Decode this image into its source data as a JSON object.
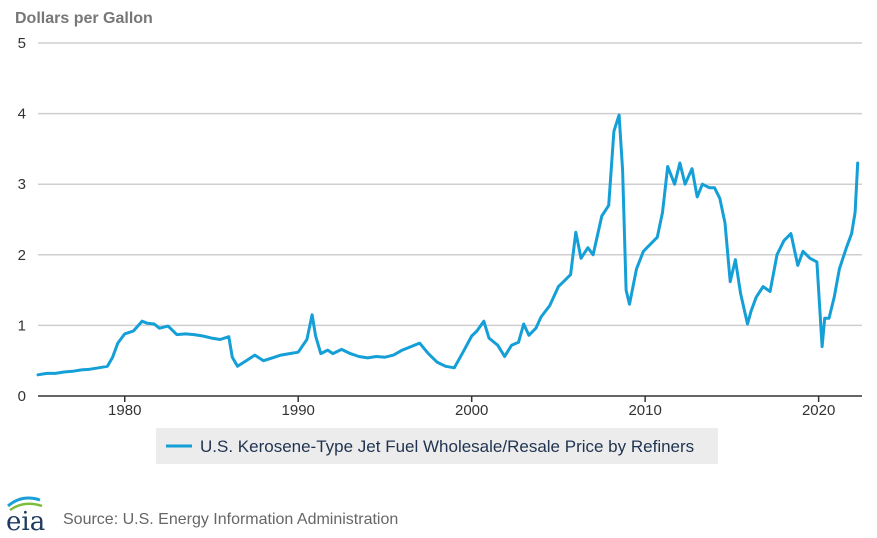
{
  "chart_data": {
    "type": "line",
    "title": "",
    "ylabel": "Dollars per Gallon",
    "xlabel": "",
    "ylim": [
      0,
      5
    ],
    "xlim": [
      1975,
      2022.5
    ],
    "y_ticks": [
      "0",
      "1",
      "2",
      "3",
      "4",
      "5"
    ],
    "x_ticks": [
      "1980",
      "1990",
      "2000",
      "2010",
      "2020"
    ],
    "grid": true,
    "legend_position": "bottom",
    "series": [
      {
        "name": "U.S. Kerosene-Type Jet Fuel Wholesale/Resale Price by Refiners",
        "color": "#159fd7",
        "x": [
          1975.0,
          1975.5,
          1976.0,
          1976.5,
          1977.0,
          1977.5,
          1978.0,
          1978.5,
          1979.0,
          1979.3,
          1979.6,
          1980.0,
          1980.5,
          1981.0,
          1981.3,
          1981.7,
          1982.0,
          1982.5,
          1983.0,
          1983.5,
          1984.0,
          1984.5,
          1985.0,
          1985.5,
          1986.0,
          1986.2,
          1986.5,
          1987.0,
          1987.5,
          1988.0,
          1988.5,
          1989.0,
          1989.5,
          1990.0,
          1990.5,
          1990.8,
          1991.0,
          1991.3,
          1991.7,
          1992.0,
          1992.5,
          1993.0,
          1993.5,
          1994.0,
          1994.5,
          1995.0,
          1995.5,
          1996.0,
          1996.5,
          1997.0,
          1997.5,
          1998.0,
          1998.5,
          1999.0,
          1999.5,
          2000.0,
          2000.3,
          2000.7,
          2001.0,
          2001.5,
          2001.9,
          2002.3,
          2002.7,
          2003.0,
          2003.3,
          2003.7,
          2004.0,
          2004.5,
          2005.0,
          2005.3,
          2005.7,
          2006.0,
          2006.3,
          2006.7,
          2007.0,
          2007.5,
          2007.9,
          2008.2,
          2008.5,
          2008.7,
          2008.9,
          2009.1,
          2009.5,
          2009.9,
          2010.3,
          2010.7,
          2011.0,
          2011.3,
          2011.7,
          2012.0,
          2012.3,
          2012.7,
          2013.0,
          2013.3,
          2013.7,
          2014.0,
          2014.3,
          2014.6,
          2014.9,
          2015.2,
          2015.5,
          2015.9,
          2016.1,
          2016.4,
          2016.8,
          2017.2,
          2017.6,
          2018.0,
          2018.4,
          2018.8,
          2019.1,
          2019.5,
          2019.9,
          2020.2,
          2020.35,
          2020.6,
          2020.9,
          2021.2,
          2021.6,
          2021.9,
          2022.1,
          2022.25
        ],
        "values": [
          0.3,
          0.32,
          0.32,
          0.34,
          0.35,
          0.37,
          0.38,
          0.4,
          0.42,
          0.55,
          0.75,
          0.88,
          0.92,
          1.06,
          1.03,
          1.02,
          0.96,
          0.99,
          0.87,
          0.88,
          0.87,
          0.85,
          0.82,
          0.8,
          0.84,
          0.55,
          0.42,
          0.5,
          0.58,
          0.5,
          0.54,
          0.58,
          0.6,
          0.62,
          0.8,
          1.15,
          0.85,
          0.6,
          0.65,
          0.6,
          0.66,
          0.6,
          0.56,
          0.54,
          0.56,
          0.55,
          0.58,
          0.65,
          0.7,
          0.75,
          0.6,
          0.48,
          0.42,
          0.4,
          0.62,
          0.85,
          0.92,
          1.06,
          0.82,
          0.72,
          0.56,
          0.72,
          0.76,
          1.02,
          0.86,
          0.96,
          1.12,
          1.28,
          1.55,
          1.62,
          1.72,
          2.32,
          1.95,
          2.1,
          2.0,
          2.55,
          2.7,
          3.75,
          3.98,
          3.2,
          1.5,
          1.3,
          1.8,
          2.05,
          2.15,
          2.25,
          2.6,
          3.25,
          3.0,
          3.3,
          3.0,
          3.22,
          2.82,
          3.0,
          2.95,
          2.95,
          2.8,
          2.45,
          1.62,
          1.93,
          1.45,
          1.02,
          1.2,
          1.4,
          1.55,
          1.48,
          2.0,
          2.2,
          2.3,
          1.85,
          2.05,
          1.95,
          1.9,
          0.7,
          1.1,
          1.1,
          1.4,
          1.8,
          2.1,
          2.3,
          2.6,
          3.3
        ]
      }
    ]
  },
  "footer": {
    "source_text": "Source: U.S. Energy Information Administration",
    "logo_text": "eia"
  }
}
